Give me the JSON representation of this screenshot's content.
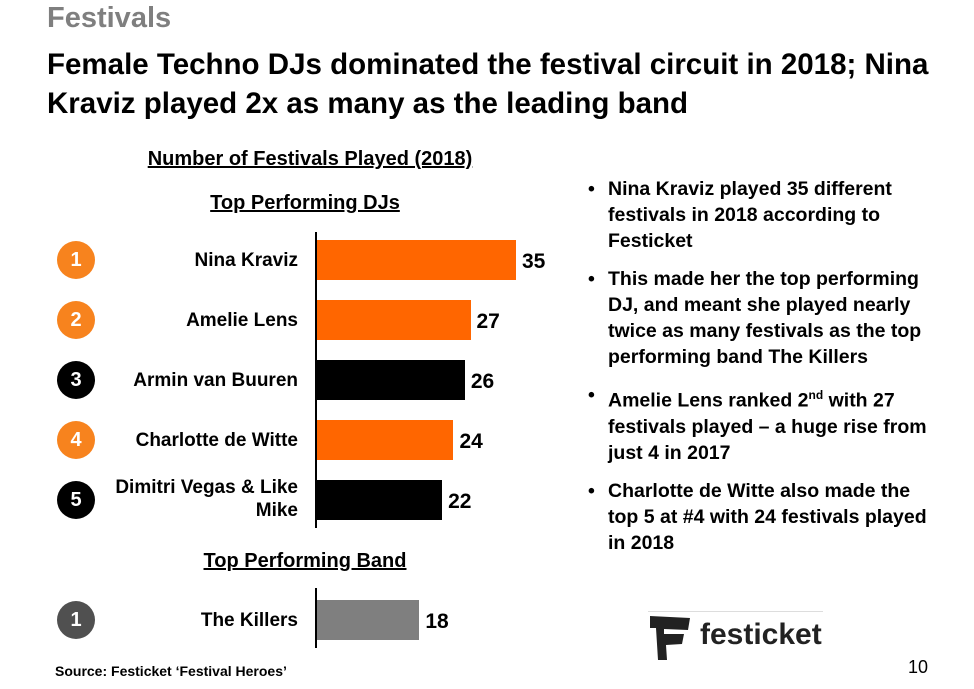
{
  "section": "Festivals",
  "headline": "Female Techno DJs dominated the festival circuit in 2018; Nina Kraviz played 2x as many as the leading band",
  "chart_data": {
    "type": "bar",
    "orientation": "horizontal",
    "title": "Number of Festivals Played (2018)",
    "xlim": [
      0,
      35
    ],
    "groups": [
      {
        "title": "Top Performing DJs",
        "items": [
          {
            "rank": "1",
            "name": "Nina Kraviz",
            "value": 35,
            "color": "#ff6600"
          },
          {
            "rank": "2",
            "name": "Amelie Lens",
            "value": 27,
            "color": "#ff6600"
          },
          {
            "rank": "3",
            "name": "Armin van Buuren",
            "value": 26,
            "color": "#000000"
          },
          {
            "rank": "4",
            "name": "Charlotte de Witte",
            "value": 24,
            "color": "#ff6600"
          },
          {
            "rank": "5",
            "name": "Dimitri Vegas & Like Mike",
            "value": 22,
            "color": "#000000"
          }
        ]
      },
      {
        "title": "Top Performing Band",
        "items": [
          {
            "rank": "1",
            "name": "The Killers",
            "value": 18,
            "color": "#7f7f7f"
          }
        ]
      }
    ]
  },
  "circle_colors": {
    "#ff6600": "#f7831e",
    "#000000": "#000000",
    "#7f7f7f": "#505050"
  },
  "bullets": [
    {
      "text": "Nina Kraviz played 35 different festivals in 2018 according to Festicket"
    },
    {
      "text": "This made her the top performing DJ, and meant she played nearly twice as many festivals as the top performing band The Killers"
    },
    {
      "pre": "Amelie Lens ranked 2",
      "sup": "nd",
      "post": " with 27 festivals played – a huge rise from just 4 in 2017"
    },
    {
      "text": "Charlotte de Witte also made the top 5 at #4 with 24 festivals played in 2018"
    }
  ],
  "source": "Source: Festicket ‘Festival Heroes’",
  "logo_text": "festicket",
  "page_number": "10"
}
